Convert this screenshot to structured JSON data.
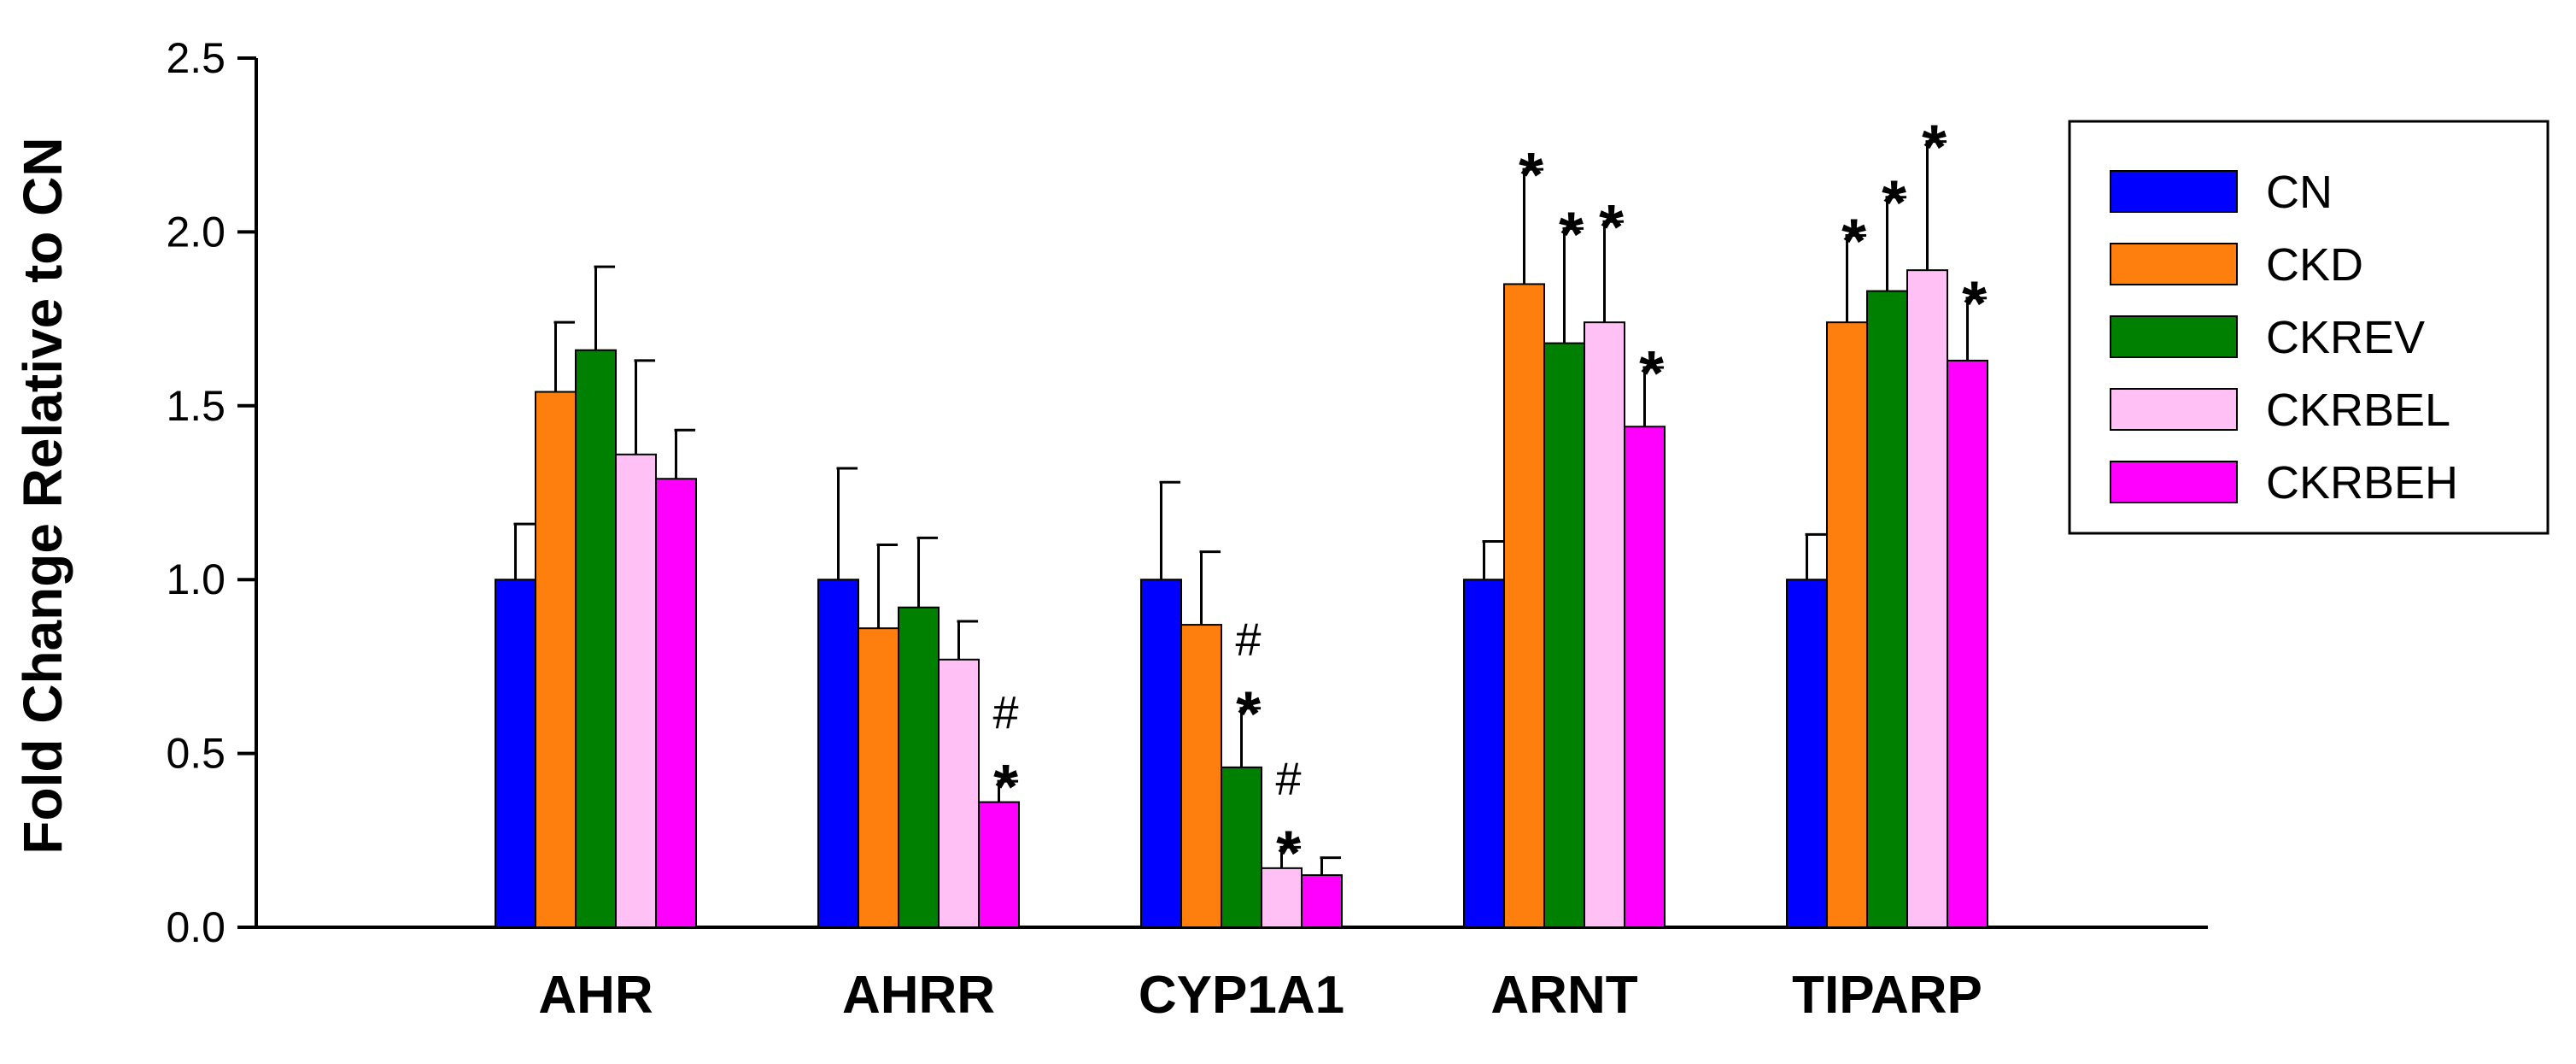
{
  "chart_data": {
    "type": "bar",
    "title": "",
    "xlabel": "",
    "ylabel": "Fold Change Relative to CN",
    "ylim": [
      0,
      2.5
    ],
    "yticks": [
      "0.0",
      "0.5",
      "1.0",
      "1.5",
      "2.0",
      "2.5"
    ],
    "categories": [
      "AHR",
      "AHRR",
      "CYP1A1",
      "ARNT",
      "TIPARP"
    ],
    "legend_position": "top-right",
    "series": [
      {
        "name": "CN",
        "color": "#0000FF",
        "values": [
          1.0,
          1.0,
          1.0,
          1.0,
          1.0
        ],
        "errors": [
          0.16,
          0.32,
          0.28,
          0.11,
          0.13
        ],
        "annotations": [
          [],
          [],
          [],
          [],
          []
        ]
      },
      {
        "name": "CKD",
        "color": "#FF7F0E",
        "values": [
          1.54,
          0.86,
          0.87,
          1.85,
          1.74
        ],
        "errors": [
          0.2,
          0.24,
          0.21,
          0.33,
          0.25
        ],
        "annotations": [
          [],
          [],
          [],
          [
            "*"
          ],
          [
            "*"
          ]
        ]
      },
      {
        "name": "CKREV",
        "color": "#008000",
        "values": [
          1.66,
          0.92,
          0.46,
          1.68,
          1.83
        ],
        "errors": [
          0.24,
          0.2,
          0.17,
          0.33,
          0.27
        ],
        "annotations": [
          [],
          [],
          [
            "*",
            "#"
          ],
          [
            "*"
          ],
          [
            "*"
          ]
        ]
      },
      {
        "name": "CKRBEL",
        "color": "#FFC0F5",
        "values": [
          1.36,
          0.77,
          0.17,
          1.74,
          1.89
        ],
        "errors": [
          0.27,
          0.11,
          0.06,
          0.29,
          0.37
        ],
        "annotations": [
          [],
          [],
          [
            "*",
            "#"
          ],
          [
            "*"
          ],
          [
            "*"
          ]
        ]
      },
      {
        "name": "CKRBEH",
        "color": "#FF00FF",
        "values": [
          1.29,
          0.36,
          0.15,
          1.44,
          1.63
        ],
        "errors": [
          0.14,
          0.06,
          0.05,
          0.17,
          0.18
        ],
        "annotations": [
          [],
          [
            "*",
            "#"
          ],
          [],
          [
            "*"
          ],
          [
            "*"
          ]
        ]
      }
    ]
  }
}
